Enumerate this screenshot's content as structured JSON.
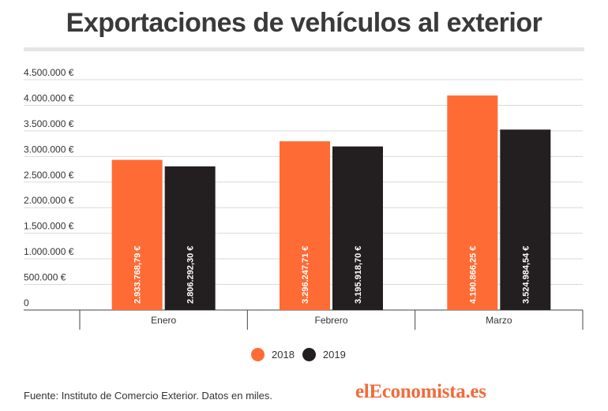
{
  "title": "Exportaciones de vehículos al exterior",
  "source": "Fuente: Instituto de Comercio Exterior. Datos en miles.",
  "logo": "elEconomista.es",
  "colors": {
    "s2018": "#ff6b35",
    "s2019": "#231f20",
    "grid": "#d9d9d9",
    "axis": "#444444",
    "logo": "#f26a3b"
  },
  "chart_data": {
    "type": "bar",
    "categories": [
      "Enero",
      "Febrero",
      "Marzo"
    ],
    "series": [
      {
        "name": "2018",
        "values": [
          2933768.79,
          3296247.71,
          4190866.25
        ],
        "labels": [
          "2.933.768,79 €",
          "3.296.247,71 €",
          "4.190.866,25 €"
        ]
      },
      {
        "name": "2019",
        "values": [
          2806292.3,
          3195918.7,
          3524984.54
        ],
        "labels": [
          "2.806.292,30 €",
          "3.195.918,70 €",
          "3.524.984,54 €"
        ]
      }
    ],
    "ylim": [
      0,
      4500000
    ],
    "yticks": [
      0,
      500000,
      1000000,
      1500000,
      2000000,
      2500000,
      3000000,
      3500000,
      4000000,
      4500000
    ],
    "ytick_labels": [
      "0",
      "500.000 €",
      "1.000.000 €",
      "1.500.000 €",
      "2.000.000 €",
      "2.500.000 €",
      "3.000.000 €",
      "3.500.000 €",
      "4.000.000 €",
      "4.500.000 €"
    ],
    "grid": true,
    "legend": "bottom-center"
  }
}
